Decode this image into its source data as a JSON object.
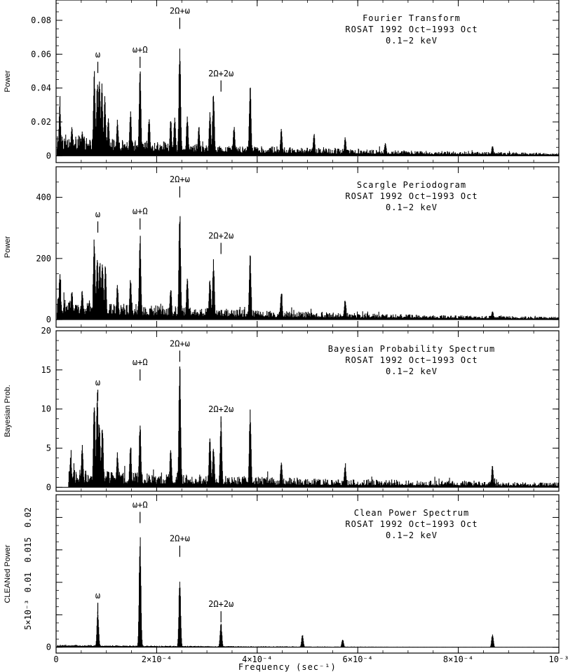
{
  "chart_data": [
    {
      "type": "line",
      "title_lines": [
        "Fourier Transform",
        "ROSAT 1992 Oct−1993 Oct",
        "0.1−2 keV"
      ],
      "ylabel": "Power",
      "ylim": [
        -0.004,
        0.092
      ],
      "yticks": [
        0,
        0.02,
        0.04,
        0.06,
        0.08
      ],
      "ytick_labels": [
        "0",
        "0.02",
        "0.04",
        "0.06",
        "0.08"
      ],
      "xlim": [
        0,
        0.001
      ],
      "baseline": 0.004,
      "noise": 0.009,
      "decay": 0.8,
      "seed": 11,
      "peaks": [
        {
          "x": 7.5e-06,
          "y": 0.031
        },
        {
          "x": 3.15e-05,
          "y": 0.018
        },
        {
          "x": 5.2e-05,
          "y": 0.016
        },
        {
          "x": 7.6e-05,
          "y": 0.053
        },
        {
          "x": 8.2e-05,
          "y": 0.044
        },
        {
          "x": 8.6e-05,
          "y": 0.049
        },
        {
          "x": 9.1e-05,
          "y": 0.043
        },
        {
          "x": 9.7e-05,
          "y": 0.036
        },
        {
          "x": 0.000104,
          "y": 0.024
        },
        {
          "x": 0.000122,
          "y": 0.022
        },
        {
          "x": 0.000148,
          "y": 0.027
        },
        {
          "x": 0.000167,
          "y": 0.052
        },
        {
          "x": 0.000185,
          "y": 0.024
        },
        {
          "x": 0.000228,
          "y": 0.022
        },
        {
          "x": 0.000236,
          "y": 0.024
        },
        {
          "x": 0.000246,
          "y": 0.068
        },
        {
          "x": 0.000261,
          "y": 0.025
        },
        {
          "x": 0.000284,
          "y": 0.018
        },
        {
          "x": 0.000306,
          "y": 0.026
        },
        {
          "x": 0.000313,
          "y": 0.038
        },
        {
          "x": 0.000354,
          "y": 0.018
        },
        {
          "x": 0.000386,
          "y": 0.043
        },
        {
          "x": 0.000448,
          "y": 0.016
        },
        {
          "x": 0.000513,
          "y": 0.014
        },
        {
          "x": 0.000575,
          "y": 0.011
        },
        {
          "x": 0.000655,
          "y": 0.008
        },
        {
          "x": 0.000868,
          "y": 0.006
        }
      ],
      "annotations": [
        {
          "label": "ω",
          "x": 8.3e-05,
          "y": 0.058
        },
        {
          "label": "ω+Ω",
          "x": 0.000167,
          "y": 0.061
        },
        {
          "label": "2Ω+ω",
          "x": 0.000246,
          "y": 0.084
        },
        {
          "label": "2Ω+2ω",
          "x": 0.000328,
          "y": 0.047
        }
      ]
    },
    {
      "type": "line",
      "title_lines": [
        "Scargle Periodogram",
        "ROSAT 1992 Oct−1993 Oct",
        "0.1−2 keV"
      ],
      "ylabel": "Power",
      "ylim": [
        -25,
        500
      ],
      "yticks": [
        0,
        200,
        400
      ],
      "ytick_labels": [
        "0",
        "200",
        "400"
      ],
      "xlim": [
        0,
        0.001
      ],
      "baseline": 20,
      "noise": 50,
      "decay": 0.8,
      "seed": 23,
      "peaks": [
        {
          "x": 7.5e-06,
          "y": 155
        },
        {
          "x": 3.15e-05,
          "y": 100
        },
        {
          "x": 5.2e-05,
          "y": 100
        },
        {
          "x": 7.6e-05,
          "y": 280
        },
        {
          "x": 8.2e-05,
          "y": 210
        },
        {
          "x": 8.7e-05,
          "y": 205
        },
        {
          "x": 9.2e-05,
          "y": 205
        },
        {
          "x": 9.8e-05,
          "y": 190
        },
        {
          "x": 0.000122,
          "y": 120
        },
        {
          "x": 0.000148,
          "y": 140
        },
        {
          "x": 0.000167,
          "y": 290
        },
        {
          "x": 0.000228,
          "y": 110
        },
        {
          "x": 0.000246,
          "y": 365
        },
        {
          "x": 0.000261,
          "y": 140
        },
        {
          "x": 0.000306,
          "y": 140
        },
        {
          "x": 0.000313,
          "y": 200
        },
        {
          "x": 0.000386,
          "y": 225
        },
        {
          "x": 0.000448,
          "y": 90
        },
        {
          "x": 0.000575,
          "y": 70
        },
        {
          "x": 0.000868,
          "y": 30
        }
      ],
      "annotations": [
        {
          "label": "ω",
          "x": 8.3e-05,
          "y": 335
        },
        {
          "label": "ω+Ω",
          "x": 0.000167,
          "y": 345
        },
        {
          "label": "2Ω+ω",
          "x": 0.000246,
          "y": 450
        },
        {
          "label": "2Ω+2ω",
          "x": 0.000328,
          "y": 265
        }
      ]
    },
    {
      "type": "line",
      "title_lines": [
        "Bayesian Probability Spectrum",
        "ROSAT 1992 Oct−1993 Oct",
        "0.1−2 keV"
      ],
      "ylabel": "Bayesian Prob.",
      "ylim": [
        -0.5,
        20
      ],
      "yticks": [
        0,
        5,
        10,
        15,
        20
      ],
      "ytick_labels": [
        "0",
        "5",
        "10",
        "15",
        "20"
      ],
      "xlim": [
        0,
        0.001
      ],
      "start_x": 2.5e-05,
      "baseline": 0.6,
      "noise": 1.8,
      "decay": 0.55,
      "seed": 37,
      "peaks": [
        {
          "x": 2.9e-05,
          "y": 4.0
        },
        {
          "x": 5.2e-05,
          "y": 5.5
        },
        {
          "x": 7.6e-05,
          "y": 11.8
        },
        {
          "x": 8.2e-05,
          "y": 12.2
        },
        {
          "x": 8.6e-05,
          "y": 9.0
        },
        {
          "x": 9.2e-05,
          "y": 8.5
        },
        {
          "x": 0.000122,
          "y": 4.5
        },
        {
          "x": 0.000148,
          "y": 5.2
        },
        {
          "x": 0.000167,
          "y": 8.6
        },
        {
          "x": 0.000228,
          "y": 5.0
        },
        {
          "x": 0.000246,
          "y": 16.5
        },
        {
          "x": 0.000306,
          "y": 6.5
        },
        {
          "x": 0.000313,
          "y": 5.5
        },
        {
          "x": 0.000328,
          "y": 8.8
        },
        {
          "x": 0.000386,
          "y": 10.0
        },
        {
          "x": 0.000448,
          "y": 3.5
        },
        {
          "x": 0.000575,
          "y": 3.0
        },
        {
          "x": 0.000868,
          "y": 2.8
        }
      ],
      "annotations": [
        {
          "label": "ω",
          "x": 8.3e-05,
          "y": 13.0
        },
        {
          "label": "ω+Ω",
          "x": 0.000167,
          "y": 15.6
        },
        {
          "label": "2Ω+ω",
          "x": 0.000246,
          "y": 18.0
        },
        {
          "label": "2Ω+2ω",
          "x": 0.000328,
          "y": 9.6
        }
      ]
    },
    {
      "type": "line",
      "title_lines": [
        "Clean Power Spectrum",
        "ROSAT 1992 Oct−1993 Oct",
        "0.1−2 keV"
      ],
      "ylabel": "CLEANed Power",
      "ylim": [
        -0.0009,
        0.0235
      ],
      "yticks": [
        0,
        0.005,
        0.01,
        0.015,
        0.02
      ],
      "ytick_labels": [
        "0",
        "5×10⁻³",
        "0.01",
        "0.015",
        "0.02"
      ],
      "xlim": [
        0,
        0.001
      ],
      "xticks": [
        0,
        0.0002,
        0.0004,
        0.0006,
        0.0008,
        0.001
      ],
      "xtick_labels": [
        "0",
        "2×10⁻⁴",
        "4×10⁻⁴",
        "6×10⁻⁴",
        "8×10⁻⁴",
        "10⁻³"
      ],
      "xlabel": "Frequency (sec⁻¹)",
      "baseline": 0.0002,
      "noise": 0.0002,
      "decay": 0.9,
      "seed": 53,
      "peaks": [
        {
          "x": 8.3e-05,
          "y": 0.0057
        },
        {
          "x": 0.000167,
          "y": 0.018
        },
        {
          "x": 0.000246,
          "y": 0.0113
        },
        {
          "x": 0.000328,
          "y": 0.0039
        },
        {
          "x": 0.00049,
          "y": 0.002
        },
        {
          "x": 0.00057,
          "y": 0.0013
        },
        {
          "x": 0.000868,
          "y": 0.0021
        }
      ],
      "annotations": [
        {
          "label": "ω",
          "x": 8.3e-05,
          "y": 0.0075
        },
        {
          "label": "ω+Ω",
          "x": 0.000167,
          "y": 0.0215
        },
        {
          "label": "2Ω+ω",
          "x": 0.000246,
          "y": 0.0163
        },
        {
          "label": "2Ω+2ω",
          "x": 0.000328,
          "y": 0.0062
        }
      ]
    }
  ]
}
